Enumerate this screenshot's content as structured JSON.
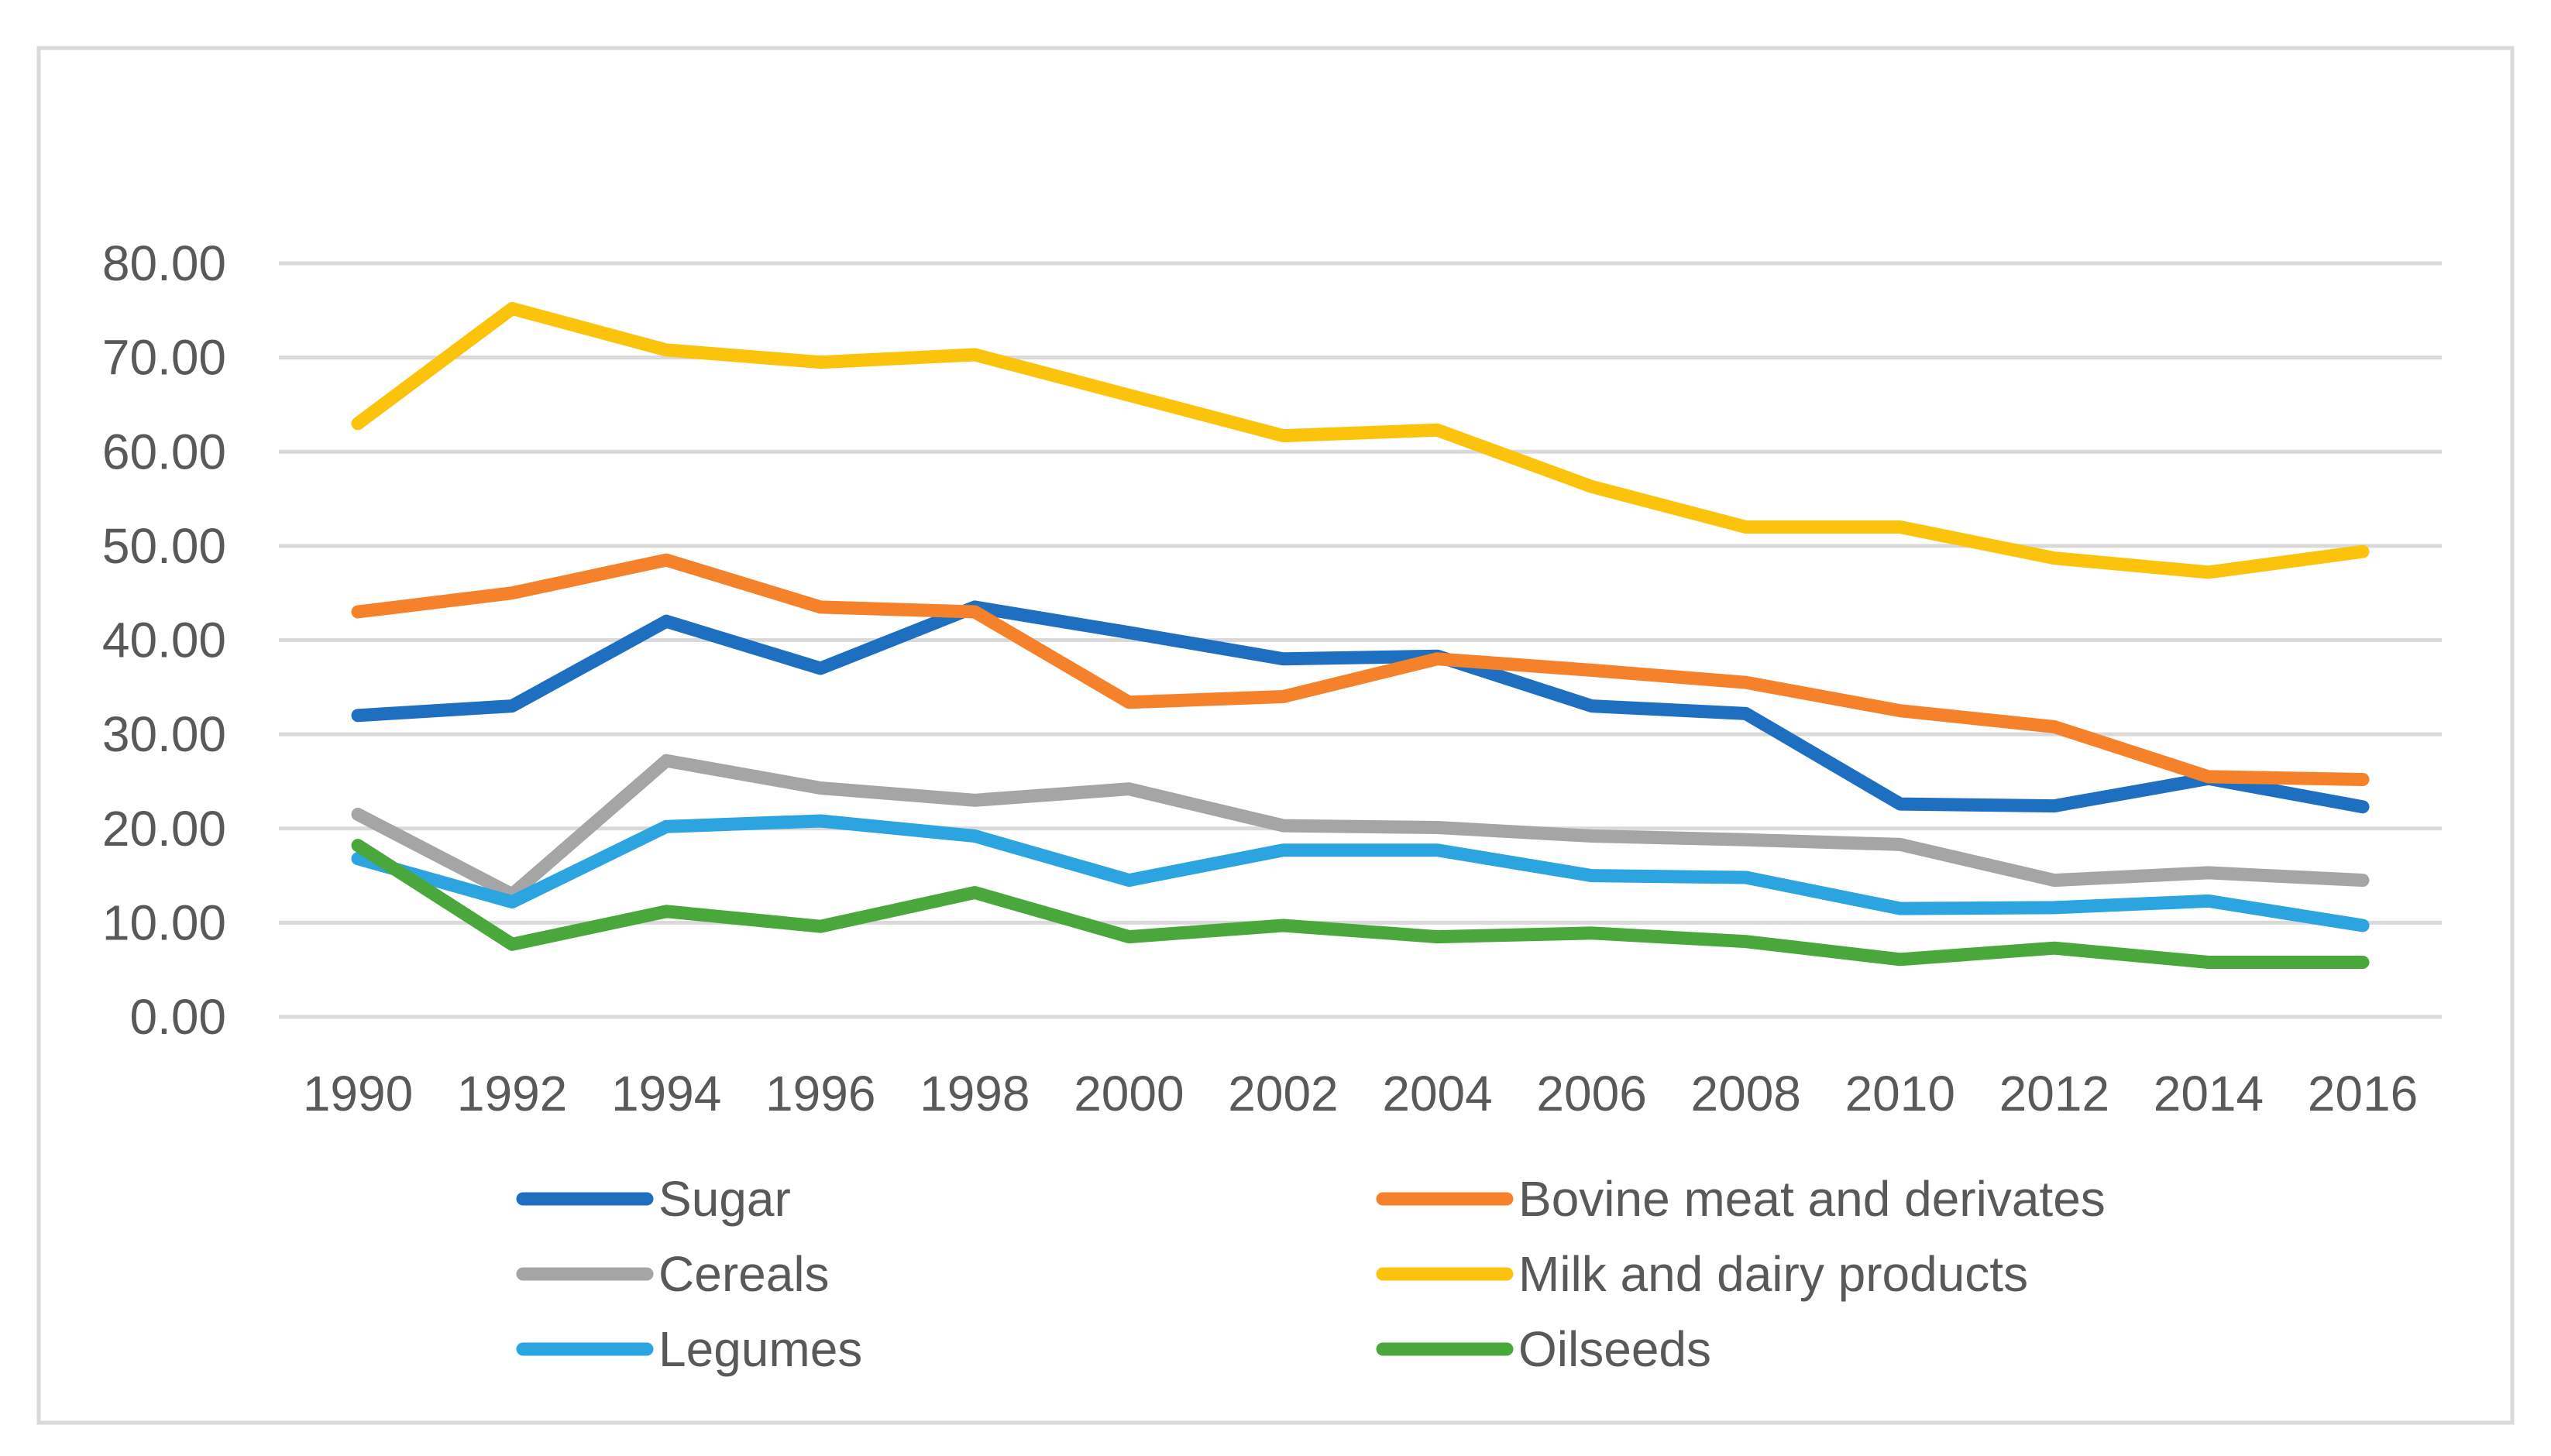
{
  "chart_data": {
    "type": "line",
    "title": "",
    "xlabel": "",
    "ylabel": "",
    "x": [
      "1990",
      "1992",
      "1994",
      "1996",
      "1998",
      "2000",
      "2002",
      "2004",
      "2006",
      "2008",
      "2010",
      "2012",
      "2014",
      "2016"
    ],
    "ylim": [
      0,
      80
    ],
    "yticks": [
      "0.00",
      "10.00",
      "20.00",
      "30.00",
      "40.00",
      "50.00",
      "60.00",
      "70.00",
      "80.00"
    ],
    "grid": true,
    "legend": "bottom",
    "series": [
      {
        "name": "Sugar",
        "color": "#1f6fc1",
        "values": [
          32.0,
          33.0,
          42.0,
          37.0,
          43.5,
          40.8,
          38.0,
          38.3,
          33.0,
          32.2,
          22.6,
          22.4,
          25.3,
          22.3
        ]
      },
      {
        "name": "Bovine meat and derivates",
        "color": "#f5822a",
        "values": [
          43.0,
          45.0,
          48.5,
          43.5,
          43.0,
          33.4,
          34.0,
          38.0,
          36.8,
          35.5,
          32.5,
          30.8,
          25.5,
          25.2
        ]
      },
      {
        "name": "Cereals",
        "color": "#a5a5a5",
        "values": [
          21.5,
          13.0,
          27.2,
          24.3,
          23.0,
          24.2,
          20.3,
          20.1,
          19.2,
          18.8,
          18.3,
          14.5,
          15.3,
          14.5
        ]
      },
      {
        "name": "Milk and dairy products",
        "color": "#fcc30c",
        "values": [
          63.0,
          75.2,
          70.8,
          69.5,
          70.3,
          66.0,
          61.7,
          62.3,
          56.3,
          52.0,
          52.0,
          48.7,
          47.2,
          49.4
        ]
      },
      {
        "name": "Legumes",
        "color": "#2ba4e0",
        "values": [
          16.8,
          12.2,
          20.2,
          20.8,
          19.2,
          14.5,
          17.7,
          17.7,
          15.0,
          14.8,
          11.5,
          11.6,
          12.3,
          9.7
        ]
      },
      {
        "name": "Oilseeds",
        "color": "#4aa73c",
        "values": [
          18.2,
          7.7,
          11.2,
          9.6,
          13.2,
          8.5,
          9.7,
          8.5,
          8.9,
          8.0,
          6.1,
          7.3,
          5.8,
          5.8
        ]
      }
    ]
  }
}
